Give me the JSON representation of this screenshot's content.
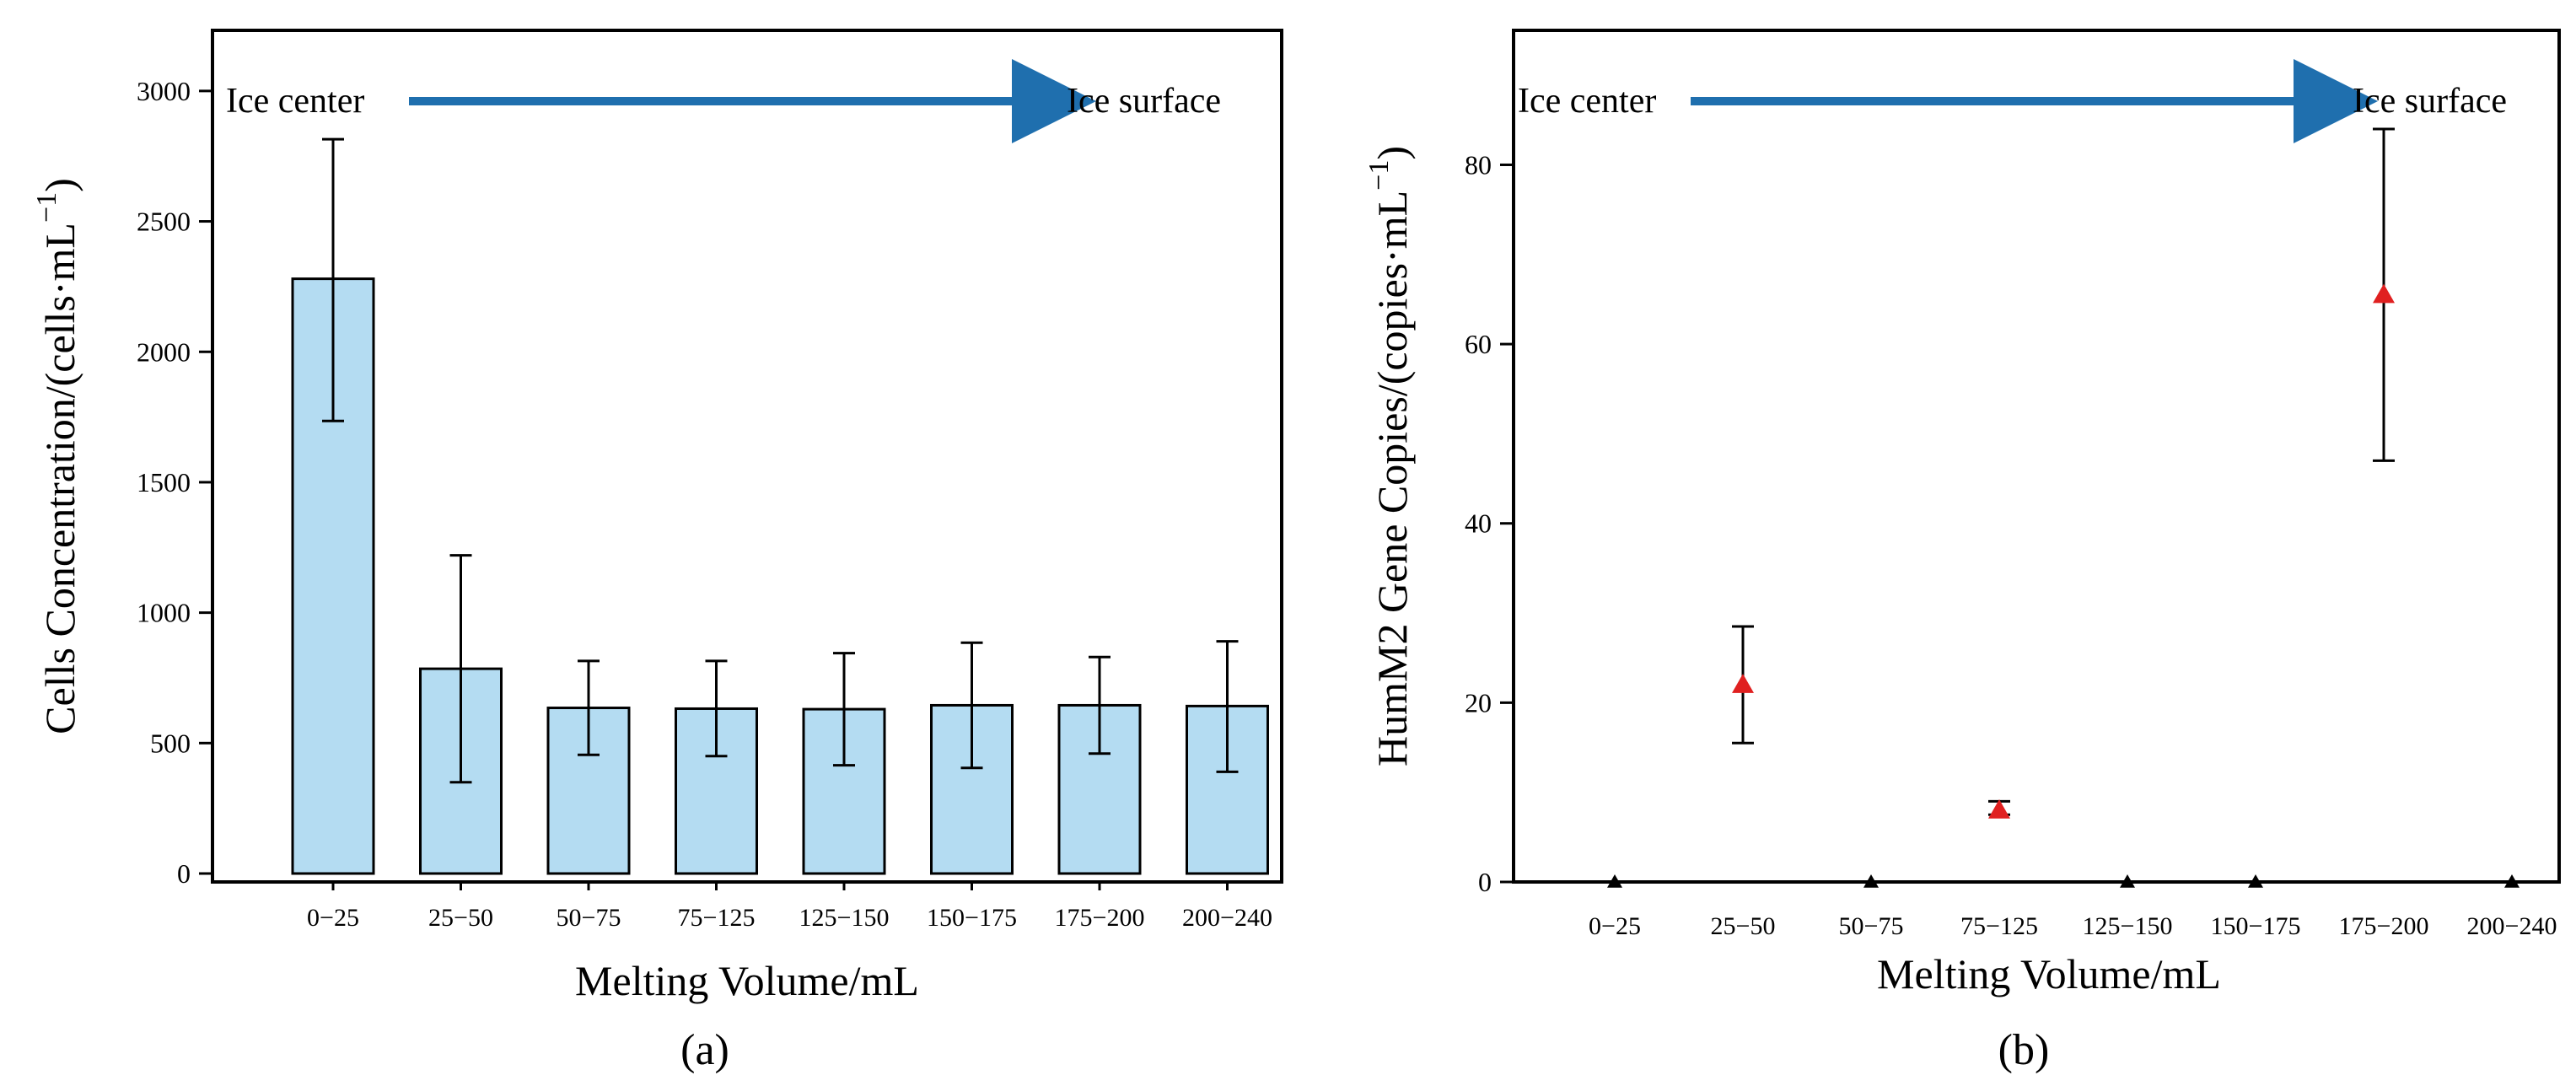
{
  "chart_data": [
    {
      "type": "bar",
      "panel_label": "(a)",
      "categories": [
        "0−25",
        "25−50",
        "50−75",
        "75−125",
        "125−150",
        "150−175",
        "175−200",
        "200−240"
      ],
      "values": [
        2280,
        785,
        635,
        632,
        630,
        645,
        645,
        642
      ],
      "errors_upper": [
        2815,
        1220,
        815,
        815,
        845,
        885,
        830,
        890
      ],
      "errors_lower": [
        1735,
        350,
        455,
        450,
        415,
        405,
        460,
        390
      ],
      "xlabel": "Melting Volume/mL",
      "ylabel_main": "Cells Concentration/(cells·mL",
      "ylabel_sup": "−1",
      "ylabel_close": ")",
      "ylim": [
        0,
        3200
      ],
      "yticks": [
        0,
        500,
        1000,
        1500,
        2000,
        2500,
        3000
      ],
      "annotation": {
        "start": "Ice center",
        "end": "Ice surface"
      },
      "colors": {
        "bar": "#b4dcf2",
        "arrow": "#1f6fae"
      }
    },
    {
      "type": "scatter",
      "panel_label": "(b)",
      "categories": [
        "0−25",
        "25−50",
        "50−75",
        "75−125",
        "125−150",
        "150−175",
        "175−200",
        "200−240"
      ],
      "values": [
        0,
        22,
        0,
        8,
        0,
        0,
        65.5,
        0
      ],
      "errors_upper": [
        null,
        28.5,
        null,
        9,
        null,
        null,
        84,
        null
      ],
      "errors_lower": [
        null,
        15.5,
        null,
        7.5,
        null,
        null,
        47,
        null
      ],
      "marker_colors": [
        "#000000",
        "#e02020",
        "#000000",
        "#e02020",
        "#000000",
        "#000000",
        "#e02020",
        "#000000"
      ],
      "xlabel": "Melting Volume/mL",
      "ylabel_main": "HumM2 Gene Copies/(copies·mL",
      "ylabel_sup": "−1",
      "ylabel_close": ")",
      "ylim": [
        0,
        95
      ],
      "yticks": [
        0,
        20,
        40,
        60,
        80
      ],
      "annotation": {
        "start": "Ice center",
        "end": "Ice surface"
      },
      "colors": {
        "arrow": "#1f6fae"
      }
    }
  ]
}
